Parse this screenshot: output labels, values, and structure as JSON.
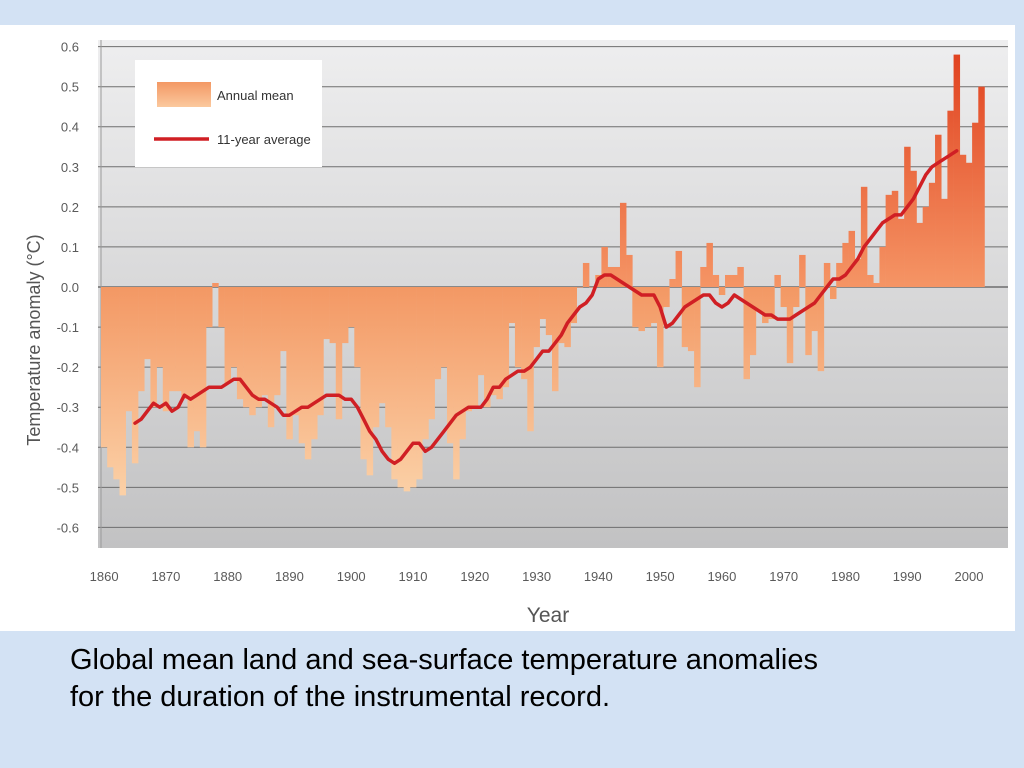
{
  "caption": {
    "line1": "Global mean land and sea-surface temperature anomalies",
    "line2": "for the duration of the instrumental record."
  },
  "colors": {
    "slide_background": "#d3e2f4",
    "bar_light": "#f7b583",
    "bar_dark": "#f06c3e",
    "line": "#d01f24",
    "gridline": "#6e6e6e"
  },
  "chart_data": {
    "type": "bar",
    "xlabel": "Year",
    "ylabel": "Temperature anomaly (°C)",
    "ylim": [
      -0.65,
      0.65
    ],
    "xlim": [
      1859.5,
      2005.5
    ],
    "yticks": [
      0.6,
      0.5,
      0.4,
      0.3,
      0.2,
      0.1,
      0.0,
      -0.1,
      -0.2,
      -0.3,
      -0.4,
      -0.5,
      -0.6
    ],
    "ytick_labels": [
      "0.6",
      "0.5",
      "0.4",
      "0.3",
      "0.2",
      "0.1",
      "0.0",
      "-0.1",
      "-0.2",
      "-0.3",
      "-0.4",
      "-0.5",
      "-0.6"
    ],
    "xticks": [
      1860,
      1870,
      1880,
      1890,
      1900,
      1910,
      1920,
      1930,
      1940,
      1950,
      1960,
      1970,
      1980,
      1990,
      2000
    ],
    "xtick_labels": [
      "1860",
      "1870",
      "1880",
      "1890",
      "1900",
      "1910",
      "1920",
      "1930",
      "1940",
      "1950",
      "1960",
      "1970",
      "1980",
      "1990",
      "2000"
    ],
    "grid": true,
    "legend_position": "top-left",
    "legend": [
      "Annual mean",
      "11-year average"
    ],
    "series": [
      {
        "name": "Annual mean",
        "kind": "bar",
        "x": [
          1860,
          1861,
          1862,
          1863,
          1864,
          1865,
          1866,
          1867,
          1868,
          1869,
          1870,
          1871,
          1872,
          1873,
          1874,
          1875,
          1876,
          1877,
          1878,
          1879,
          1880,
          1881,
          1882,
          1883,
          1884,
          1885,
          1886,
          1887,
          1888,
          1889,
          1890,
          1891,
          1892,
          1893,
          1894,
          1895,
          1896,
          1897,
          1898,
          1899,
          1900,
          1901,
          1902,
          1903,
          1904,
          1905,
          1906,
          1907,
          1908,
          1909,
          1910,
          1911,
          1912,
          1913,
          1914,
          1915,
          1916,
          1917,
          1918,
          1919,
          1920,
          1921,
          1922,
          1923,
          1924,
          1925,
          1926,
          1927,
          1928,
          1929,
          1930,
          1931,
          1932,
          1933,
          1934,
          1935,
          1936,
          1937,
          1938,
          1939,
          1940,
          1941,
          1942,
          1943,
          1944,
          1945,
          1946,
          1947,
          1948,
          1949,
          1950,
          1951,
          1952,
          1953,
          1954,
          1955,
          1956,
          1957,
          1958,
          1959,
          1960,
          1961,
          1962,
          1963,
          1964,
          1965,
          1966,
          1967,
          1968,
          1969,
          1970,
          1971,
          1972,
          1973,
          1974,
          1975,
          1976,
          1977,
          1978,
          1979,
          1980,
          1981,
          1982,
          1983,
          1984,
          1985,
          1986,
          1987,
          1988,
          1989,
          1990,
          1991,
          1992,
          1993,
          1994,
          1995,
          1996,
          1997,
          1998,
          1999,
          2000,
          2001,
          2002
        ],
        "values": [
          -0.4,
          -0.45,
          -0.48,
          -0.52,
          -0.31,
          -0.44,
          -0.26,
          -0.18,
          -0.3,
          -0.2,
          -0.31,
          -0.26,
          -0.26,
          -0.28,
          -0.4,
          -0.36,
          -0.4,
          -0.1,
          0.01,
          -0.1,
          -0.24,
          -0.2,
          -0.28,
          -0.3,
          -0.32,
          -0.3,
          -0.27,
          -0.35,
          -0.27,
          -0.16,
          -0.38,
          -0.32,
          -0.39,
          -0.43,
          -0.38,
          -0.32,
          -0.13,
          -0.14,
          -0.33,
          -0.14,
          -0.1,
          -0.2,
          -0.43,
          -0.47,
          -0.35,
          -0.29,
          -0.35,
          -0.48,
          -0.5,
          -0.51,
          -0.5,
          -0.48,
          -0.38,
          -0.33,
          -0.23,
          -0.2,
          -0.39,
          -0.48,
          -0.38,
          -0.31,
          -0.3,
          -0.22,
          -0.3,
          -0.27,
          -0.28,
          -0.25,
          -0.09,
          -0.2,
          -0.23,
          -0.36,
          -0.15,
          -0.08,
          -0.12,
          -0.26,
          -0.14,
          -0.15,
          -0.09,
          0.0,
          0.06,
          0.0,
          0.03,
          0.1,
          0.05,
          0.05,
          0.21,
          0.08,
          -0.1,
          -0.11,
          -0.1,
          -0.09,
          -0.2,
          -0.05,
          0.02,
          0.09,
          -0.15,
          -0.16,
          -0.25,
          0.05,
          0.11,
          0.03,
          -0.02,
          0.03,
          0.03,
          0.05,
          -0.23,
          -0.17,
          -0.06,
          -0.09,
          -0.08,
          0.03,
          -0.05,
          -0.19,
          -0.05,
          0.08,
          -0.17,
          -0.11,
          -0.21,
          0.06,
          -0.03,
          0.06,
          0.11,
          0.14,
          0.07,
          0.25,
          0.03,
          0.01,
          0.1,
          0.23,
          0.24,
          0.17,
          0.35,
          0.29,
          0.16,
          0.2,
          0.26,
          0.38,
          0.22,
          0.44,
          0.58,
          0.33,
          0.31,
          0.41,
          0.5
        ]
      },
      {
        "name": "11-year average",
        "kind": "line",
        "x": [
          1865,
          1866,
          1867,
          1868,
          1869,
          1870,
          1871,
          1872,
          1873,
          1874,
          1875,
          1876,
          1877,
          1878,
          1879,
          1880,
          1881,
          1882,
          1883,
          1884,
          1885,
          1886,
          1887,
          1888,
          1889,
          1890,
          1891,
          1892,
          1893,
          1894,
          1895,
          1896,
          1897,
          1898,
          1899,
          1900,
          1901,
          1902,
          1903,
          1904,
          1905,
          1906,
          1907,
          1908,
          1909,
          1910,
          1911,
          1912,
          1913,
          1914,
          1915,
          1916,
          1917,
          1918,
          1919,
          1920,
          1921,
          1922,
          1923,
          1924,
          1925,
          1926,
          1927,
          1928,
          1929,
          1930,
          1931,
          1932,
          1933,
          1934,
          1935,
          1936,
          1937,
          1938,
          1939,
          1940,
          1941,
          1942,
          1943,
          1944,
          1945,
          1946,
          1947,
          1948,
          1949,
          1950,
          1951,
          1952,
          1953,
          1954,
          1955,
          1956,
          1957,
          1958,
          1959,
          1960,
          1961,
          1962,
          1963,
          1964,
          1965,
          1966,
          1967,
          1968,
          1969,
          1970,
          1971,
          1972,
          1973,
          1974,
          1975,
          1976,
          1977,
          1978,
          1979,
          1980,
          1981,
          1982,
          1983,
          1984,
          1985,
          1986,
          1987,
          1988,
          1989,
          1990,
          1991,
          1992,
          1993,
          1994,
          1995,
          1996,
          1997,
          1998
        ],
        "values": [
          -0.34,
          -0.33,
          -0.31,
          -0.29,
          -0.3,
          -0.29,
          -0.31,
          -0.3,
          -0.27,
          -0.28,
          -0.27,
          -0.26,
          -0.25,
          -0.25,
          -0.25,
          -0.24,
          -0.23,
          -0.23,
          -0.25,
          -0.27,
          -0.28,
          -0.28,
          -0.29,
          -0.3,
          -0.32,
          -0.32,
          -0.31,
          -0.3,
          -0.3,
          -0.29,
          -0.28,
          -0.27,
          -0.27,
          -0.27,
          -0.28,
          -0.28,
          -0.3,
          -0.33,
          -0.36,
          -0.38,
          -0.41,
          -0.43,
          -0.44,
          -0.43,
          -0.41,
          -0.39,
          -0.39,
          -0.41,
          -0.4,
          -0.38,
          -0.36,
          -0.34,
          -0.32,
          -0.31,
          -0.3,
          -0.3,
          -0.3,
          -0.28,
          -0.25,
          -0.25,
          -0.23,
          -0.22,
          -0.21,
          -0.21,
          -0.2,
          -0.18,
          -0.16,
          -0.16,
          -0.14,
          -0.12,
          -0.09,
          -0.07,
          -0.05,
          -0.04,
          -0.02,
          0.02,
          0.03,
          0.03,
          0.02,
          0.01,
          0.0,
          -0.01,
          -0.02,
          -0.02,
          -0.02,
          -0.05,
          -0.1,
          -0.09,
          -0.07,
          -0.05,
          -0.04,
          -0.03,
          -0.02,
          -0.02,
          -0.04,
          -0.05,
          -0.04,
          -0.02,
          -0.03,
          -0.04,
          -0.05,
          -0.06,
          -0.07,
          -0.07,
          -0.08,
          -0.08,
          -0.08,
          -0.07,
          -0.06,
          -0.05,
          -0.04,
          -0.02,
          0.0,
          0.02,
          0.02,
          0.03,
          0.05,
          0.07,
          0.1,
          0.12,
          0.14,
          0.16,
          0.17,
          0.18,
          0.18,
          0.2,
          0.22,
          0.25,
          0.28,
          0.3,
          0.31,
          0.32,
          0.33,
          0.34
        ]
      }
    ]
  }
}
